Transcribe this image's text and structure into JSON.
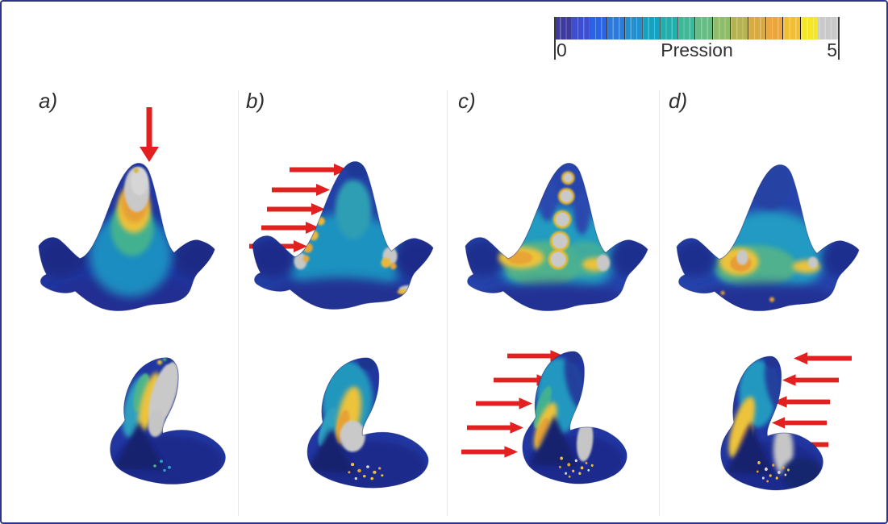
{
  "figure": {
    "description": "Finite-element pressure maps on a tricuspid tooth under four loading conditions",
    "border_color": "#2d338b",
    "background_color": "#ffffff",
    "arrow_color": "#e2201f"
  },
  "colorbar": {
    "title": "Pression",
    "min_label": "0",
    "max_label": "5",
    "segments": [
      "#3e3a9e",
      "#3b4ed4",
      "#2a64e6",
      "#2b7bdc",
      "#2290cf",
      "#14a2c3",
      "#21afab",
      "#3eb897",
      "#66bd84",
      "#8ebc68",
      "#b5b252",
      "#d7aa43",
      "#eda63b",
      "#f3bf32",
      "#f5e626",
      "#c9c9c9"
    ],
    "overflow_color": "#c9c9c9"
  },
  "panels": [
    {
      "label": "a)",
      "load": {
        "view": "top",
        "arrows": 1,
        "direction": "down",
        "meaning": "apical vertical load on cusp tip"
      }
    },
    {
      "label": "b)",
      "load": {
        "view": "top",
        "arrows": 5,
        "direction": "right",
        "meaning": "horizontal load on mesial edge of cusp (front view)"
      }
    },
    {
      "label": "c)",
      "load": {
        "view": "bottom",
        "arrows": 5,
        "direction": "right",
        "meaning": "horizontal load on anterior edge of cusp (profile view)"
      }
    },
    {
      "label": "d)",
      "load": {
        "view": "bottom",
        "arrows": 5,
        "direction": "left",
        "meaning": "horizontal load on posterior edge of cusp (profile view)"
      }
    }
  ],
  "chart_data": {
    "type": "heatmap",
    "title": "",
    "colorbar": {
      "label": "Pression",
      "min": 0,
      "max": 5,
      "overflow": "gray = saturated (≥ 5)"
    },
    "layout": {
      "rows": [
        "frontal crown view",
        "lateral profile view"
      ],
      "columns": [
        "a)",
        "b)",
        "c)",
        "d)"
      ],
      "legend_position": "top-right"
    },
    "panels": [
      {
        "label": "a)",
        "load": "1 arrow, vertical downward on cusp apex (top view)",
        "high_pressure_regions": "gray saturated cap at cusp apex with yellow-orange ring, teal-green mid cusp, dark blue base and lateral wings"
      },
      {
        "label": "b)",
        "load": "5 arrows, horizontal rightward on left flank of cusp (top view)",
        "high_pressure_regions": "yellow/orange and gray flecks along loaded left edge of cusp, gray-yellow patch in right notch; body mostly blue-teal; profile view shows yellow band and gray patch at cusp base"
      },
      {
        "label": "c)",
        "load": "5 arrows, horizontal rightward on anterior edge of cusp (profile view)",
        "high_pressure_regions": "column of gray saturated spots with yellow halos down cusp midline, yellow bands across crown flanks, gray patch in right notch; profile shows yellow anterior band and speckled gray/yellow base"
      },
      {
        "label": "d)",
        "load": "5 arrows, horizontal leftward on posterior edge of cusp (profile view)",
        "high_pressure_regions": "yellow-orange blob with gray core left of cusp base, yellow streak with gray fleck in right notch; profile shows strong yellow anterior band, gray field behind dark triangle, speckled base"
      }
    ]
  }
}
